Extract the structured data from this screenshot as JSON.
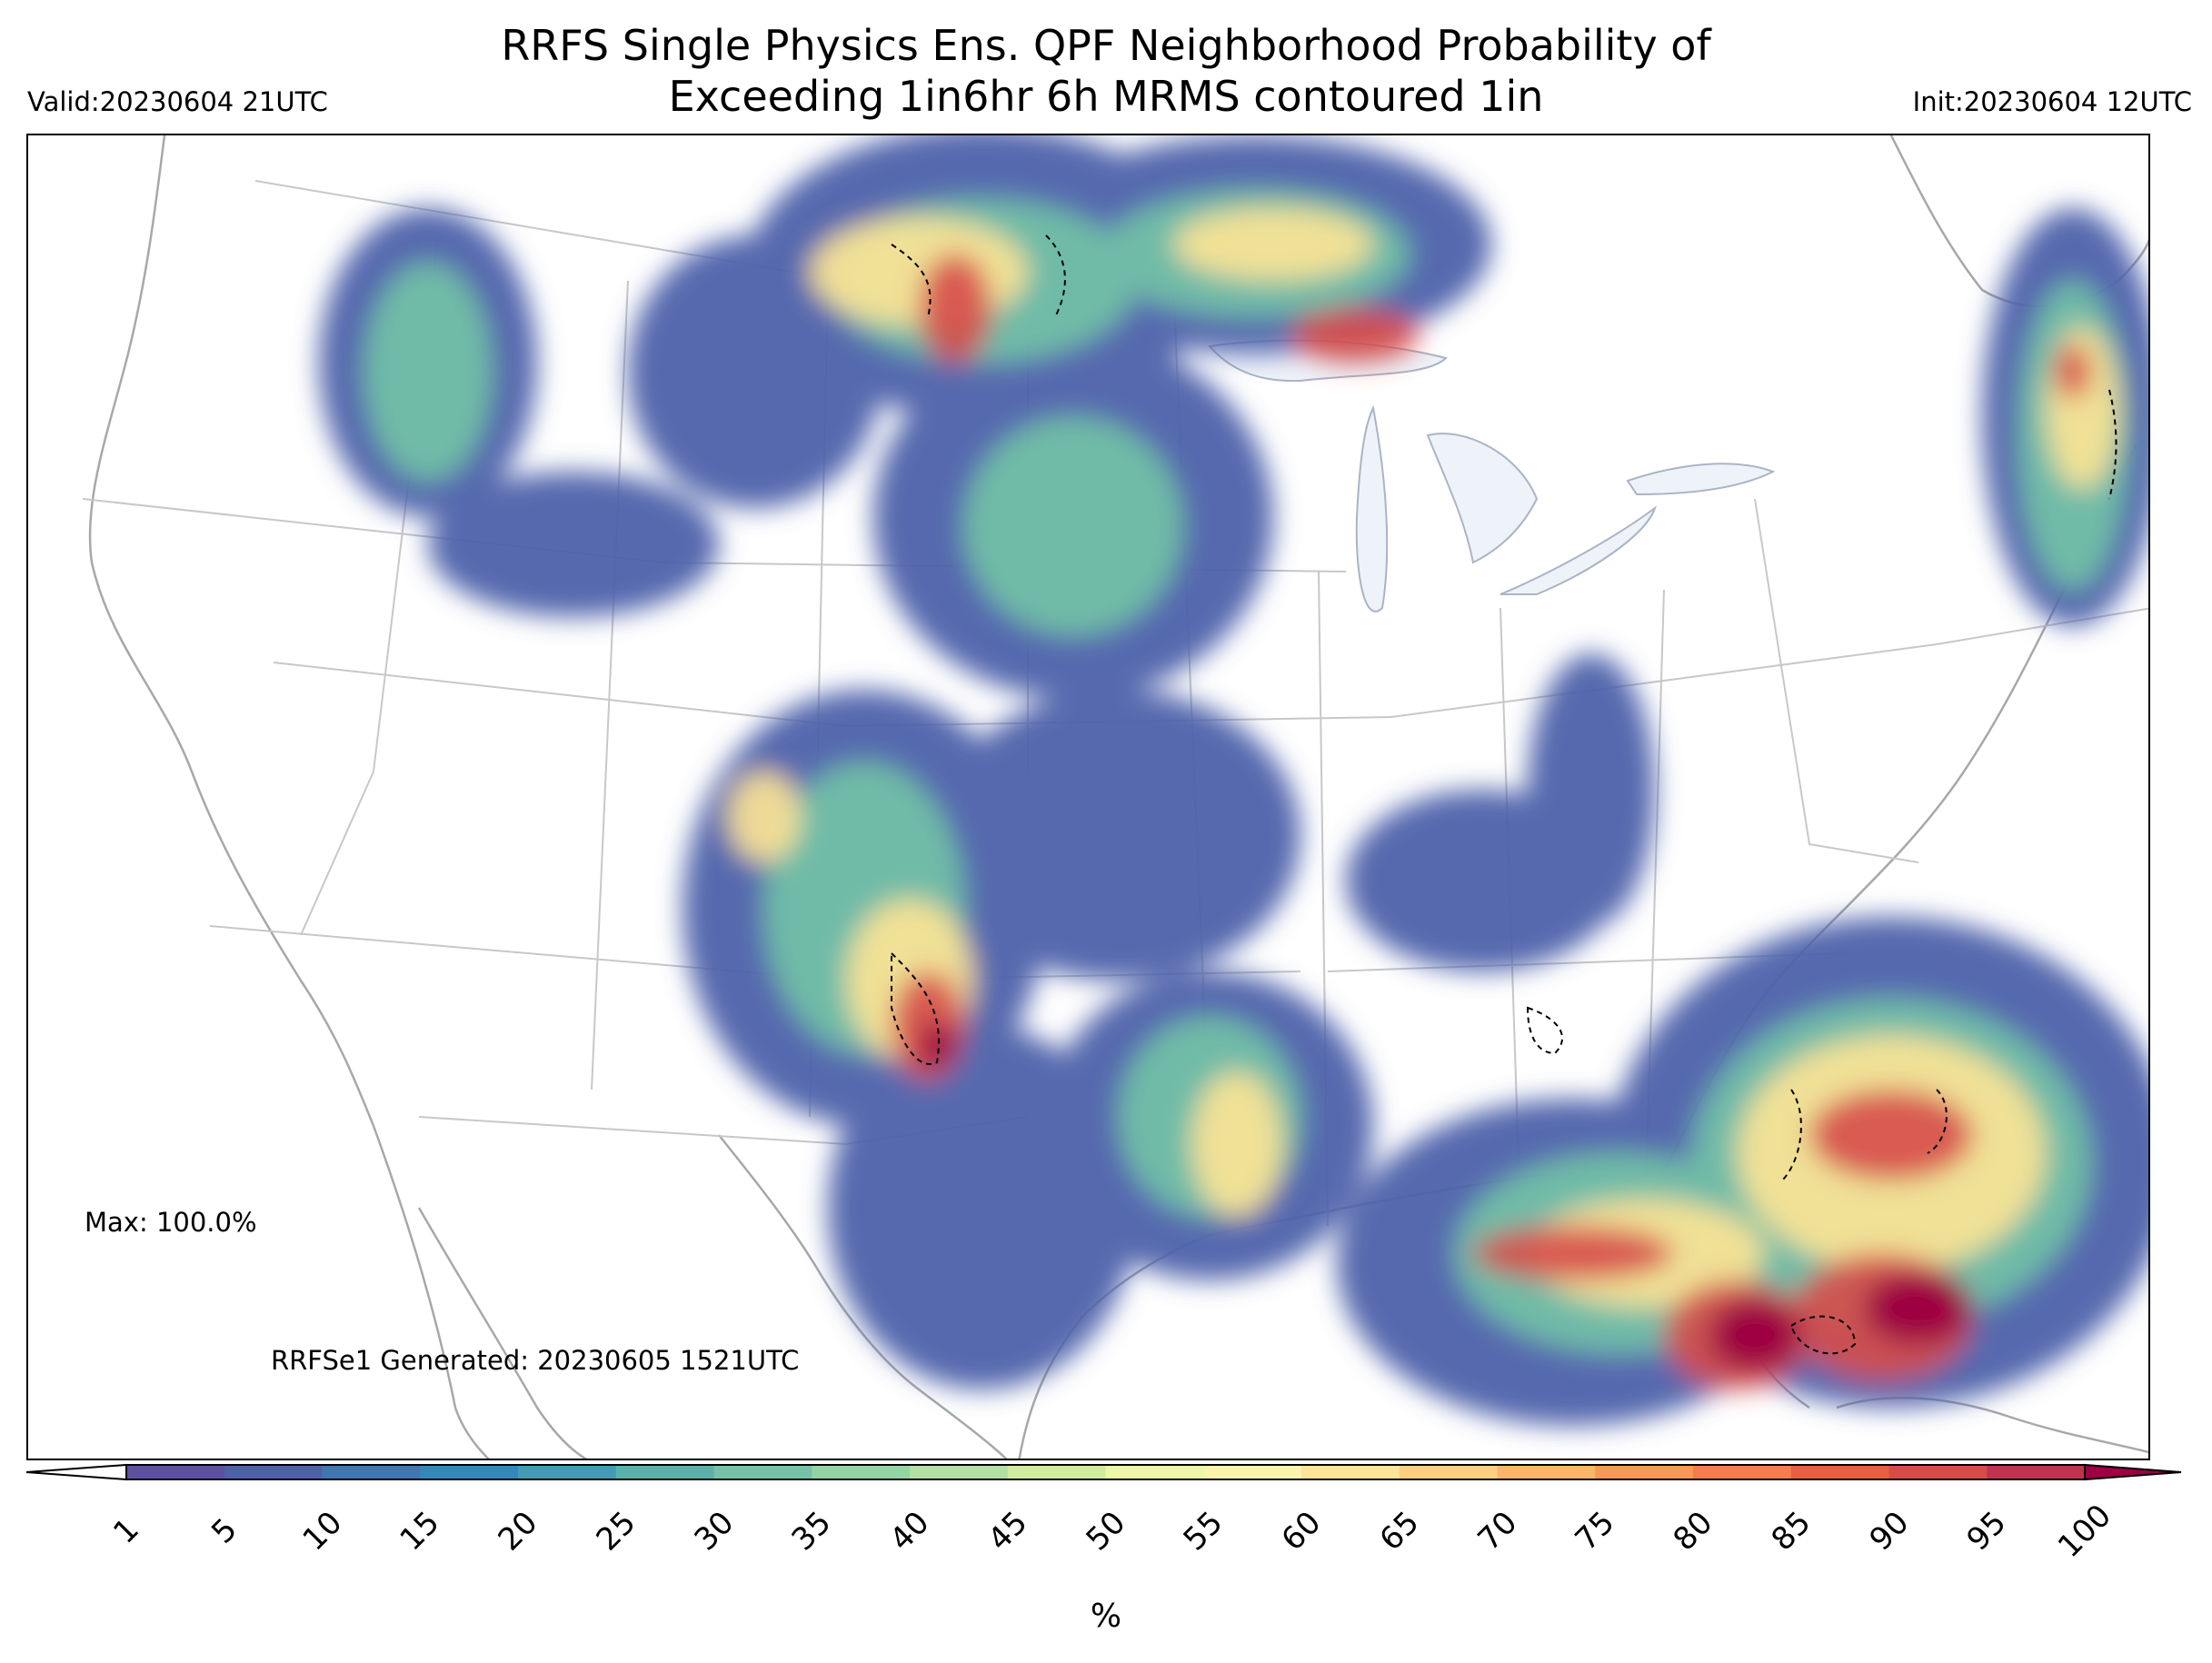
{
  "title_line1": "RRFS Single Physics Ens. QPF Neighborhood Probability of",
  "title_line2": "Exceeding 1in6hr 6h MRMS contoured 1in",
  "valid": "Valid:20230604 21UTC",
  "init": "Init:20230604 12UTC",
  "max_note": "Max: 100.0%",
  "generated": "RRFSe1 Generated: 20230605 1521UTC",
  "colorbar": {
    "ticks": [
      "1",
      "5",
      "10",
      "15",
      "20",
      "25",
      "30",
      "35",
      "40",
      "45",
      "50",
      "55",
      "60",
      "65",
      "70",
      "75",
      "80",
      "85",
      "90",
      "95",
      "100"
    ],
    "unit": "%",
    "colors": [
      "#5e4fa2",
      "#4f61aa",
      "#4076b1",
      "#3288bd",
      "#439bb5",
      "#59b2aa",
      "#73c4a6",
      "#93d4a4",
      "#b1e0a2",
      "#d0ec9c",
      "#eef8a4",
      "#fbf5ac",
      "#fee594",
      "#fed07e",
      "#fdb567",
      "#f99857",
      "#f57d4a",
      "#e7613f",
      "#d64c49",
      "#be3450",
      "#9e0142"
    ]
  },
  "icons": [
    "map-icon",
    "colorbar-extend-arrow-icon"
  ]
}
